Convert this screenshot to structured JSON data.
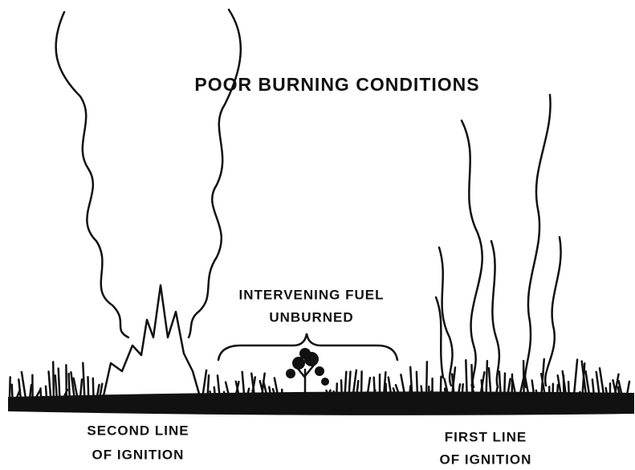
{
  "title": "POOR BURNING CONDITIONS",
  "labels": [
    {
      "lines": [
        "INTERVENING FUEL",
        "UNBURNED"
      ]
    },
    {
      "lines": [
        "SECOND LINE",
        "OF IGNITION"
      ]
    },
    {
      "lines": [
        "FIRST LINE",
        "OF IGNITION"
      ]
    }
  ]
}
